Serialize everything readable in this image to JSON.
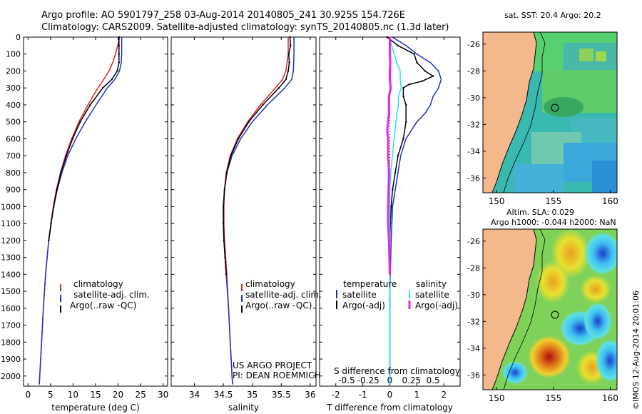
{
  "header": {
    "line1": "Argo profile: AO 5901797_258 03-Aug-2014 20140805_241 30.925S 154.726E",
    "line2": "Climatology: CARS2009. Satellite-adjusted climatology: synTS_20140805.nc (1.3d later)"
  },
  "colors": {
    "climatology": "#dd2222",
    "satellite": "#1a2fd0",
    "argo": "#000000",
    "sat_salt": "#22e0ee",
    "argo_salt": "#ee22ee",
    "land": "#f3b98c"
  },
  "depth_axis": {
    "ticks": [
      0,
      100,
      200,
      300,
      400,
      500,
      600,
      700,
      800,
      900,
      1000,
      1100,
      1200,
      1300,
      1400,
      1500,
      1600,
      1700,
      1800,
      1900,
      2000
    ],
    "range": [
      0,
      2060
    ]
  },
  "chart_data": [
    {
      "type": "line",
      "id": "temperature",
      "xlabel": "temperature (deg C)",
      "xlim": [
        -1,
        31
      ],
      "xticks": [
        0,
        5,
        10,
        15,
        20,
        25,
        30
      ],
      "legend": [
        "climatology",
        "satellite-adj. clim.",
        "Argo(..raw -QC)"
      ],
      "series": [
        {
          "name": "climatology",
          "color": "#dd2222",
          "depth": [
            0,
            50,
            100,
            150,
            200,
            250,
            300,
            400,
            500,
            600,
            700,
            800,
            900,
            1000,
            1200,
            1400,
            1600,
            1800,
            2000,
            2050
          ],
          "values": [
            20.3,
            19.9,
            19.4,
            18.8,
            18.0,
            16.8,
            15.5,
            13.3,
            11.3,
            9.7,
            8.3,
            7.2,
            6.3,
            5.6,
            4.6,
            3.9,
            3.4,
            3.0,
            2.6,
            2.5
          ]
        },
        {
          "name": "satellite-adj. clim.",
          "color": "#1a2fd0",
          "depth": [
            0,
            50,
            100,
            150,
            200,
            250,
            300,
            400,
            500,
            600,
            700,
            800,
            900,
            1000,
            1200,
            1400,
            1600,
            1800,
            2000,
            2050
          ],
          "values": [
            20.8,
            20.8,
            20.8,
            20.7,
            20.3,
            19.3,
            17.6,
            15.1,
            12.7,
            10.6,
            8.8,
            7.5,
            6.5,
            5.7,
            4.6,
            3.9,
            3.4,
            3.0,
            2.6,
            2.5
          ]
        },
        {
          "name": "Argo(..raw -QC)",
          "color": "#000000",
          "depth": [
            0,
            50,
            100,
            150,
            200,
            250,
            300,
            400,
            500,
            600,
            700,
            800,
            900,
            1000,
            1100,
            1200
          ],
          "values": [
            20.2,
            20.2,
            20.2,
            20.2,
            19.8,
            18.6,
            16.6,
            13.8,
            11.6,
            9.9,
            8.5,
            7.3,
            6.4,
            5.7,
            5.1,
            4.6
          ]
        }
      ]
    },
    {
      "type": "line",
      "id": "salinity",
      "xlabel": "salinity",
      "xlim": [
        33.6,
        36.1
      ],
      "xticks": [
        34,
        34.5,
        35,
        35.5,
        36
      ],
      "tick_labels": [
        "34",
        "34.5",
        "35",
        "35.5",
        "36"
      ],
      "legend": [
        "climatology",
        "satellite-adj. clim.",
        "Argo(..raw -QC)"
      ],
      "series": [
        {
          "name": "climatology",
          "color": "#dd2222",
          "depth": [
            0,
            100,
            200,
            250,
            300,
            400,
            500,
            600,
            700,
            800,
            900,
            1000,
            1100,
            1200,
            1400,
            1600,
            1800,
            2000,
            2050
          ],
          "values": [
            35.62,
            35.62,
            35.58,
            35.52,
            35.4,
            35.14,
            34.92,
            34.74,
            34.62,
            34.55,
            34.52,
            34.51,
            34.51,
            34.52,
            34.56,
            34.59,
            34.62,
            34.65,
            34.66
          ]
        },
        {
          "name": "satellite-adj. clim.",
          "color": "#1a2fd0",
          "depth": [
            0,
            100,
            200,
            250,
            300,
            400,
            500,
            600,
            700,
            800,
            900,
            1000,
            1100,
            1200,
            1400,
            1600,
            1800,
            2000,
            2050
          ],
          "values": [
            35.72,
            35.72,
            35.71,
            35.68,
            35.56,
            35.26,
            35.0,
            34.8,
            34.65,
            34.56,
            34.52,
            34.5,
            34.5,
            34.51,
            34.55,
            34.59,
            34.62,
            34.65,
            34.66
          ]
        },
        {
          "name": "Argo(..raw -QC)",
          "color": "#000000",
          "depth": [
            0,
            50,
            100,
            150,
            200,
            250,
            300,
            400,
            500,
            600,
            700,
            800,
            900,
            1000,
            1100,
            1200,
            1300,
            1400
          ],
          "values": [
            35.65,
            35.66,
            35.63,
            35.64,
            35.62,
            35.58,
            35.46,
            35.18,
            34.94,
            34.76,
            34.63,
            34.56,
            34.52,
            34.5,
            34.5,
            34.51,
            34.53,
            34.55
          ]
        }
      ]
    },
    {
      "type": "line",
      "id": "differences",
      "xlabel": "T difference from climatology",
      "xlabel2": "S difference from climatology",
      "xlim": [
        -2.6,
        2.6
      ],
      "xticks": [
        -2,
        -1,
        0,
        1,
        2
      ],
      "tick_labels": [
        "-2",
        "-1",
        "0",
        "1",
        "2"
      ],
      "s_ticks": [
        -0.5,
        -0.25,
        0,
        0.25,
        0.5
      ],
      "s_tick_labels": [
        "-0.5",
        "-0.25",
        "0",
        "0.25",
        "0.5"
      ],
      "legend_t_title": "temperature",
      "legend_s_title": "salinity",
      "legend": [
        "satellite",
        "Argo(-adj)",
        "satellite",
        "Argo(-adj)"
      ],
      "series": [
        {
          "name": "T satellite",
          "color": "#1a2fd0",
          "depth": [
            0,
            50,
            100,
            150,
            200,
            250,
            300,
            350,
            400,
            450,
            500,
            600,
            700,
            800,
            900,
            1000,
            1200,
            1500,
            1800,
            2050
          ],
          "values": [
            0.1,
            0.6,
            1.0,
            1.5,
            1.8,
            1.9,
            1.8,
            1.6,
            1.5,
            1.3,
            1.0,
            0.6,
            0.4,
            0.3,
            0.2,
            0.1,
            0.05,
            0,
            0,
            0
          ]
        },
        {
          "name": "T Argo(-adj)",
          "color": "#000000",
          "depth": [
            0,
            50,
            100,
            150,
            200,
            230,
            260,
            280,
            300,
            350,
            400,
            500,
            600,
            700,
            800,
            900,
            1000,
            1100,
            1200
          ],
          "values": [
            -0.1,
            0.3,
            0.9,
            1.0,
            1.3,
            1.6,
            1.2,
            0.7,
            0.5,
            0.5,
            0.6,
            0.6,
            0.5,
            0.3,
            0.2,
            0.1,
            0.05,
            0.02,
            0
          ]
        },
        {
          "name": "S satellite",
          "color": "#22e0ee",
          "depth": [
            0,
            50,
            100,
            150,
            200,
            250,
            300,
            350,
            400,
            450,
            500,
            600,
            700,
            800,
            900,
            1000,
            1100,
            1200,
            1400,
            1600,
            1800,
            2050
          ],
          "values": [
            0,
            0.02,
            0.05,
            0.08,
            0.12,
            0.12,
            0.13,
            0.1,
            0.1,
            0.08,
            0.07,
            0.05,
            0.03,
            0.01,
            0,
            0,
            0,
            0,
            0,
            0,
            0,
            0
          ]
        },
        {
          "name": "S Argo(-adj)",
          "color": "#ee22ee",
          "depth": [
            0,
            50,
            100,
            150,
            200,
            250,
            300,
            350,
            400,
            450,
            500,
            550,
            600,
            700,
            800,
            900,
            1000,
            1100,
            1200,
            1300,
            1400
          ],
          "values": [
            0,
            0,
            0,
            0.005,
            0,
            0,
            0.01,
            -0.01,
            -0.01,
            -0.01,
            -0.02,
            -0.03,
            -0.02,
            -0.02,
            -0.01,
            -0.015,
            -0.02,
            -0.02,
            -0.01,
            -0.005,
            0
          ]
        }
      ]
    },
    {
      "type": "heatmap",
      "id": "sst_map",
      "title": "sat. SST: 20.4  Argo: 20.2",
      "xticks": [
        150,
        155,
        160
      ],
      "yticks": [
        -26,
        -28,
        -30,
        -32,
        -34,
        -36
      ],
      "xlim": [
        148.8,
        160.6
      ],
      "ylim": [
        -37.1,
        -25.1
      ],
      "argo_location": [
        154.726,
        -30.925
      ]
    },
    {
      "type": "heatmap",
      "id": "sla_map",
      "title": "Altim. SLA: 0.029",
      "title2": "Argo h1000: -0.044 h2000: NaN",
      "xticks": [
        150,
        155,
        160
      ],
      "yticks": [
        -26,
        -28,
        -30,
        -32,
        -34,
        -36
      ],
      "xlim": [
        148.8,
        160.6
      ],
      "ylim": [
        -37.1,
        -25.1
      ],
      "argo_location": [
        154.726,
        -30.925
      ]
    }
  ],
  "annotations": {
    "project": "US ARGO PROJECT",
    "pi": "PI: DEAN ROEMMICH",
    "stamp": "©IMOS 12-Aug-2014 20:01:06"
  }
}
